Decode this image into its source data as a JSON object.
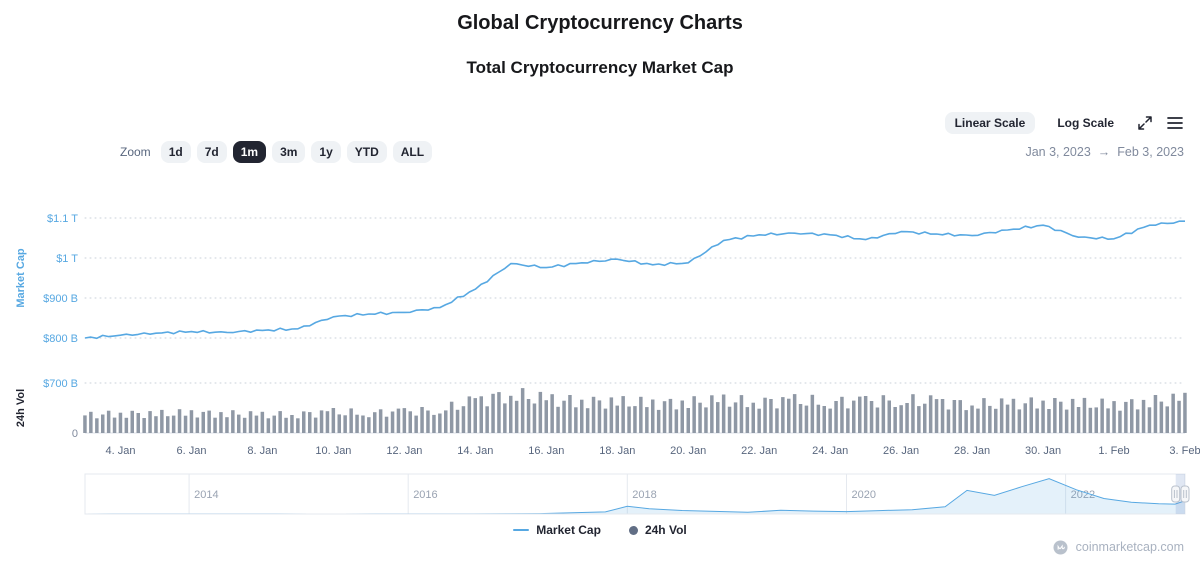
{
  "page": {
    "title": "Global Cryptocurrency Charts",
    "subtitle": "Total Cryptocurrency Market Cap"
  },
  "toolbar": {
    "linear_scale": "Linear Scale",
    "log_scale": "Log Scale"
  },
  "zoom": {
    "label": "Zoom",
    "options": [
      "1d",
      "7d",
      "1m",
      "3m",
      "1y",
      "YTD",
      "ALL"
    ],
    "selected": "1m",
    "date_range": {
      "start": "Jan 3, 2023",
      "arrow": "→",
      "end": "Feb 3, 2023"
    }
  },
  "axes": {
    "market_cap_title": "Market Cap",
    "volume_title": "24h Vol"
  },
  "legend": [
    {
      "name": "Market Cap",
      "marker": "line",
      "color": "#57a8e2"
    },
    {
      "name": "24h Vol",
      "marker": "circle",
      "color": "#616e85"
    }
  ],
  "watermark": "coinmarketcap.com",
  "colors": {
    "market_cap_line": "#57a8e2",
    "volume_bar": "#8f98a5",
    "grid": "#c9d0da",
    "axis_blue": "#57a8e2",
    "muted": "#808a9d",
    "dark": "#222531",
    "chip_bg": "#eff2f5",
    "chip_selected_bg": "#222531",
    "navigator_fill": "rgba(87,168,226,0.16)",
    "selection_mask": "rgba(102,133,194,0.2)"
  },
  "chart_data": [
    {
      "type": "line",
      "name": "Market Cap",
      "unit": "USD billions",
      "x": [
        "Jan 3",
        "Jan 4",
        "Jan 5",
        "Jan 6",
        "Jan 7",
        "Jan 8",
        "Jan 9",
        "Jan 10",
        "Jan 11",
        "Jan 12",
        "Jan 13",
        "Jan 14",
        "Jan 15",
        "Jan 16",
        "Jan 17",
        "Jan 18",
        "Jan 19",
        "Jan 20",
        "Jan 21",
        "Jan 22",
        "Jan 23",
        "Jan 24",
        "Jan 25",
        "Jan 26",
        "Jan 27",
        "Jan 28",
        "Jan 29",
        "Jan 30",
        "Jan 31",
        "Feb 1",
        "Feb 2",
        "Feb 3"
      ],
      "values": [
        800,
        807,
        812,
        816,
        814,
        819,
        823,
        853,
        860,
        864,
        876,
        922,
        986,
        976,
        988,
        997,
        983,
        988,
        1044,
        1058,
        1062,
        1058,
        1046,
        1066,
        1060,
        1056,
        1070,
        1082,
        1052,
        1048,
        1082,
        1092
      ],
      "ylim": [
        800,
        1100
      ],
      "yticks": [
        {
          "label": "$1.1 T",
          "v": 1100
        },
        {
          "label": "$1 T",
          "v": 1000
        },
        {
          "label": "$900 B",
          "v": 900
        },
        {
          "label": "$800 B",
          "v": 800
        }
      ],
      "xticks": [
        {
          "label": "4. Jan",
          "i": 1
        },
        {
          "label": "6. Jan",
          "i": 3
        },
        {
          "label": "8. Jan",
          "i": 5
        },
        {
          "label": "10. Jan",
          "i": 7
        },
        {
          "label": "12. Jan",
          "i": 9
        },
        {
          "label": "14. Jan",
          "i": 11
        },
        {
          "label": "16. Jan",
          "i": 13
        },
        {
          "label": "18. Jan",
          "i": 15
        },
        {
          "label": "20. Jan",
          "i": 17
        },
        {
          "label": "22. Jan",
          "i": 19
        },
        {
          "label": "24. Jan",
          "i": 21
        },
        {
          "label": "26. Jan",
          "i": 23
        },
        {
          "label": "28. Jan",
          "i": 25
        },
        {
          "label": "30. Jan",
          "i": 27
        },
        {
          "label": "1. Feb",
          "i": 29
        },
        {
          "label": "3. Feb",
          "i": 31
        }
      ]
    },
    {
      "type": "bar",
      "name": "24h Vol",
      "unit": "USD billions",
      "values": [
        300,
        330,
        320,
        340,
        330,
        300,
        320,
        350,
        340,
        360,
        390,
        540,
        670,
        560,
        540,
        520,
        500,
        520,
        545,
        530,
        545,
        525,
        535,
        555,
        525,
        495,
        485,
        525,
        495,
        475,
        535,
        570
      ],
      "ylim": [
        0,
        700
      ],
      "yticks": [
        {
          "label": "$700 B",
          "v": 700
        },
        {
          "label": "0",
          "v": 0
        }
      ]
    },
    {
      "type": "area",
      "name": "Navigator (all-time Market Cap)",
      "unit": "USD billions",
      "x": [
        2013.05,
        2013.3,
        2013.6,
        2013.9,
        2014.2,
        2014.5,
        2014.8,
        2015.1,
        2015.4,
        2015.7,
        2016.0,
        2016.3,
        2016.6,
        2016.9,
        2017.2,
        2017.5,
        2017.8,
        2018.0,
        2018.2,
        2018.5,
        2018.8,
        2019.1,
        2019.4,
        2019.7,
        2020.0,
        2020.3,
        2020.6,
        2020.9,
        2021.1,
        2021.35,
        2021.6,
        2021.85,
        2022.1,
        2022.35,
        2022.6,
        2022.85,
        2023.0,
        2023.09
      ],
      "values": [
        2,
        12,
        11,
        9,
        8,
        7,
        5,
        4,
        4,
        5,
        7,
        9,
        11,
        14,
        30,
        100,
        170,
        620,
        430,
        280,
        210,
        140,
        300,
        230,
        190,
        270,
        350,
        580,
        1900,
        1500,
        2200,
        2850,
        1950,
        1250,
        950,
        820,
        795,
        1060
      ],
      "xlim": [
        2013.05,
        2023.09
      ],
      "ylim": [
        0,
        2900
      ],
      "year_ticks": [
        2014,
        2016,
        2018,
        2020,
        2022
      ],
      "selection": [
        2023.005,
        2023.09
      ]
    }
  ]
}
